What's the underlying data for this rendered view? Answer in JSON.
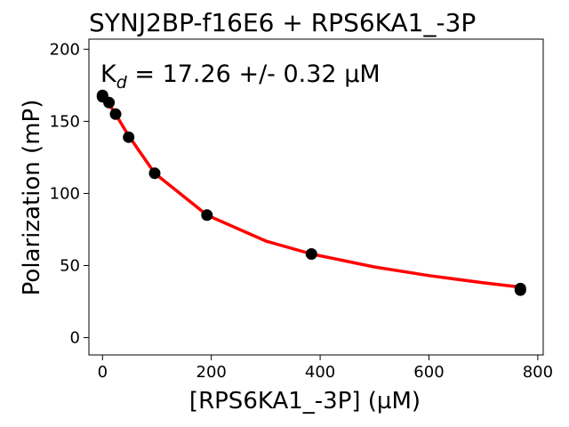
{
  "chart_data": {
    "type": "scatter",
    "title": "SYNJ2BP-f16E6 + RPS6KA1_-3P",
    "xlabel": "[RPS6KA1_-3P] (µM)",
    "ylabel": "Polarization (mP)",
    "annotation": {
      "prefix": "K",
      "subscript": "d",
      "text": " = 17.26 +/- 0.32 ",
      "unit": "µM"
    },
    "xlim": [
      -25,
      810
    ],
    "ylim": [
      -12,
      207
    ],
    "xticks": [
      0,
      200,
      400,
      600,
      800
    ],
    "yticks": [
      0,
      50,
      100,
      150,
      200
    ],
    "grid": false,
    "points": {
      "color": "#000000",
      "x": [
        0,
        0,
        12,
        24,
        48,
        96,
        192,
        384,
        768,
        768
      ],
      "y": [
        168,
        167,
        163,
        155,
        139,
        114,
        85,
        58,
        34,
        33
      ]
    },
    "fit": {
      "color": "#ff0000",
      "x": [
        0,
        12,
        24,
        48,
        96,
        192,
        300,
        384,
        500,
        600,
        700,
        768
      ],
      "y": [
        168,
        162,
        155,
        140,
        114,
        85,
        67,
        58,
        49,
        43,
        38,
        35
      ]
    }
  }
}
